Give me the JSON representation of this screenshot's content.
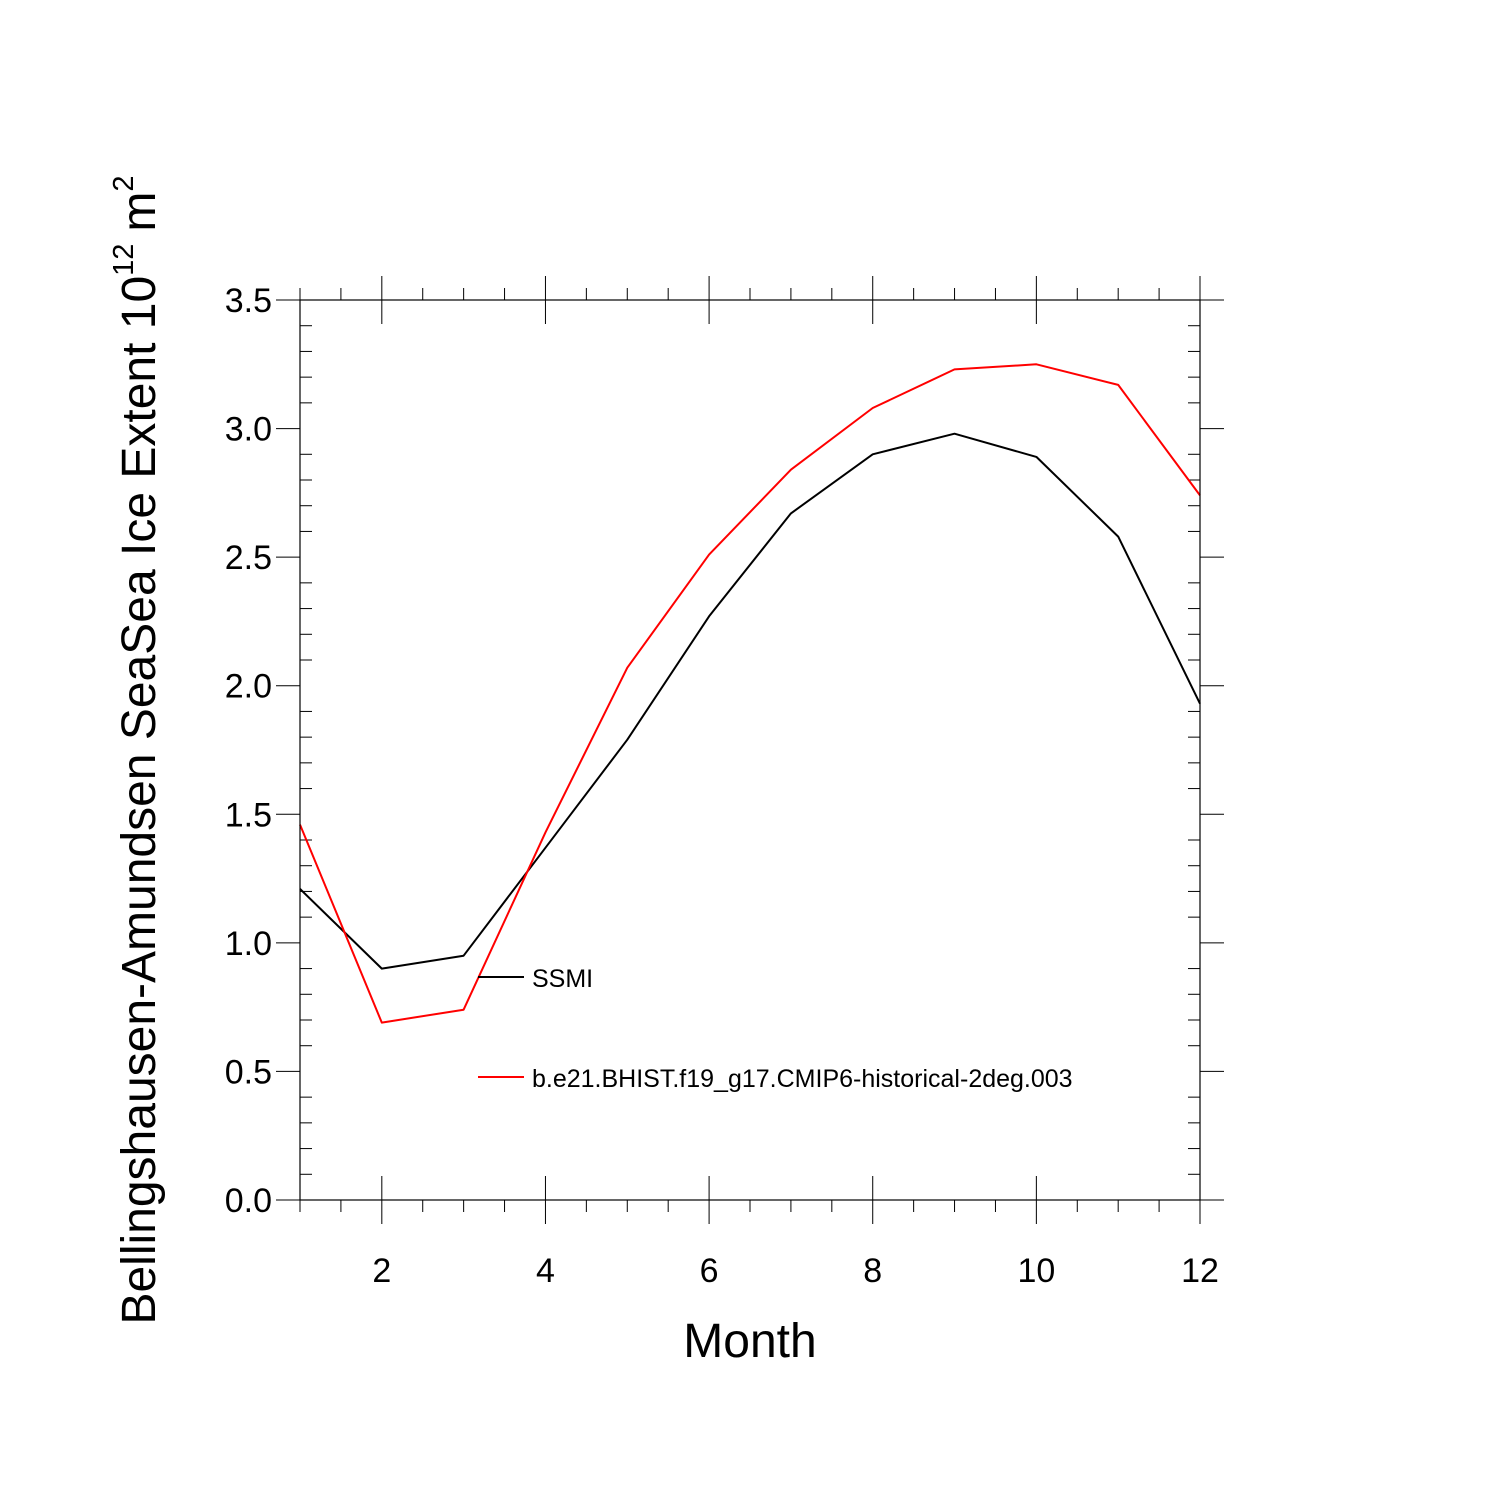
{
  "chart_data": {
    "type": "line",
    "title": "",
    "xlabel": "Month",
    "ylabel_main": "Bellingshausen-Amundsen SeaSea Ice Extent 10",
    "ylabel_exponent": "12",
    "ylabel_unit": "m",
    "ylabel_unit_exponent": "2",
    "xlim": [
      1,
      12
    ],
    "ylim": [
      0,
      3.5
    ],
    "x_major_ticks": [
      2,
      4,
      6,
      8,
      10,
      12
    ],
    "x_tick_labels": [
      "2",
      "4",
      "6",
      "8",
      "10",
      "12"
    ],
    "y_major_ticks": [
      0,
      0.5,
      1.0,
      1.5,
      2.0,
      2.5,
      3.0,
      3.5
    ],
    "y_tick_labels": [
      "0.0",
      "0.5",
      "1.0",
      "1.5",
      "2.0",
      "2.5",
      "3.0",
      "3.5"
    ],
    "x": [
      1,
      2,
      3,
      4,
      5,
      6,
      7,
      8,
      9,
      10,
      11,
      12
    ],
    "series": [
      {
        "name": "SSMI",
        "color": "#000000",
        "values": [
          1.21,
          0.9,
          0.95,
          1.37,
          1.79,
          2.27,
          2.67,
          2.9,
          2.98,
          2.89,
          2.58,
          1.93
        ]
      },
      {
        "name": "b.e21.BHIST.f19_g17.CMIP6-historical-2deg.003",
        "color": "#ff0000",
        "values": [
          1.46,
          0.69,
          0.74,
          1.43,
          2.07,
          2.51,
          2.84,
          3.08,
          3.23,
          3.25,
          3.17,
          2.74
        ]
      }
    ],
    "legend_position": "lower-center"
  }
}
